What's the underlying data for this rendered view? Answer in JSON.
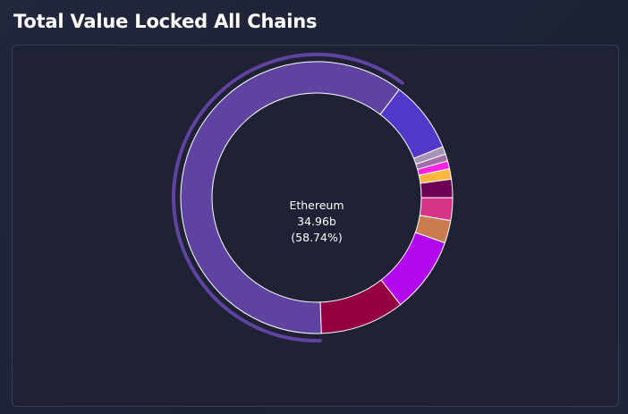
{
  "header": {
    "title": "Total Value Locked All Chains"
  },
  "chart_data": {
    "type": "pie",
    "title": "Total Value Locked All Chains",
    "highlighted": {
      "label": "Ethereum",
      "value_text": "34.96b",
      "percent_text": "(58.74%)"
    },
    "slices": [
      {
        "label": "Ethereum",
        "percent": 58.74,
        "color": "#5e43a0"
      },
      {
        "label": "",
        "percent": 8.2,
        "color": "#5238c8"
      },
      {
        "label": "",
        "percent": 0.9,
        "color": "#a894b6"
      },
      {
        "label": "",
        "percent": 0.8,
        "color": "#9e6ea4"
      },
      {
        "label": "",
        "percent": 0.9,
        "color": "#ff24e4"
      },
      {
        "label": "",
        "percent": 1.2,
        "color": "#ffb63c"
      },
      {
        "label": "",
        "percent": 2.1,
        "color": "#6b0055"
      },
      {
        "label": "",
        "percent": 2.6,
        "color": "#d43387"
      },
      {
        "label": "",
        "percent": 2.6,
        "color": "#c97c50"
      },
      {
        "label": "",
        "percent": 8.7,
        "color": "#b108ee"
      },
      {
        "label": "",
        "percent": 9.65,
        "color": "#950040"
      }
    ]
  }
}
